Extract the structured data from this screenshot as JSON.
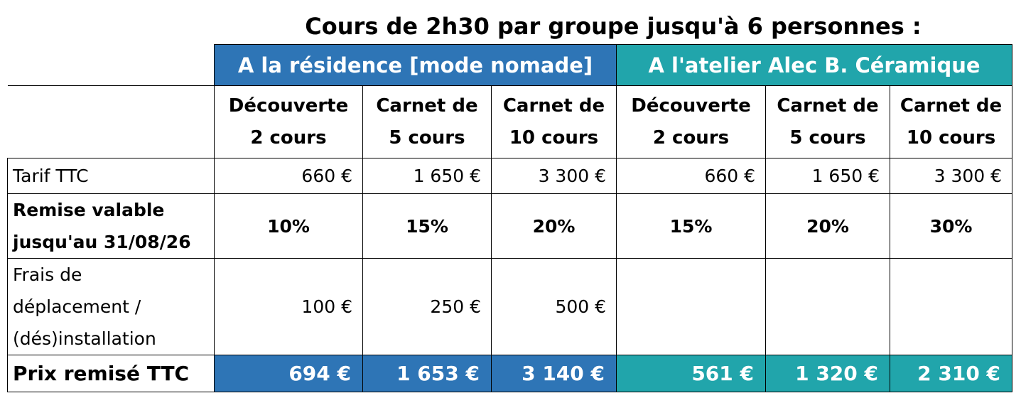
{
  "title": "Cours de 2h30 par groupe jusqu'à 6 personnes :",
  "groups": [
    {
      "label": "A la résidence [mode nomade]",
      "color": "#2e75b6"
    },
    {
      "label": "A l'atelier Alec B. Céramique",
      "color": "#21a5ab"
    }
  ],
  "columns": [
    {
      "line1": "Découverte",
      "line2": "2 cours"
    },
    {
      "line1": "Carnet de",
      "line2": "5 cours"
    },
    {
      "line1": "Carnet de",
      "line2": "10 cours"
    },
    {
      "line1": "Découverte",
      "line2": "2 cours"
    },
    {
      "line1": "Carnet de",
      "line2": "5 cours"
    },
    {
      "line1": "Carnet de",
      "line2": "10 cours"
    }
  ],
  "rows": {
    "tarif": {
      "label": "Tarif TTC",
      "values": [
        "660 €",
        "1 650 €",
        "3 300 €",
        "660 €",
        "1 650 €",
        "3 300 €"
      ]
    },
    "remise": {
      "label_line1": "Remise valable",
      "label_line2": "jusqu'au 31/08/26",
      "values": [
        "10%",
        "15%",
        "20%",
        "15%",
        "20%",
        "30%"
      ]
    },
    "frais": {
      "label_line1": "Frais de",
      "label_line2": "déplacement /",
      "label_line3": "(dés)installation",
      "values": [
        "100 €",
        "250 €",
        "500 €",
        "",
        "",
        ""
      ]
    },
    "prix": {
      "label": "Prix remisé TTC",
      "values": [
        "694 €",
        "1 653 €",
        "3 140 €",
        "561 €",
        "1 320 €",
        "2 310 €"
      ]
    }
  }
}
